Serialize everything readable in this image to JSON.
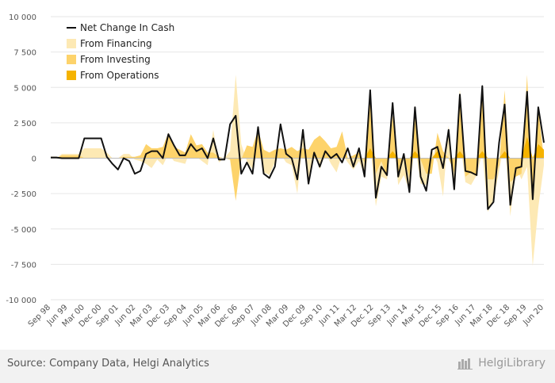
{
  "chart_data": {
    "type": "area",
    "title": "",
    "xlabel": "",
    "ylabel": "",
    "ylim": [
      -10000,
      10000
    ],
    "yticks": [
      10000,
      7500,
      5000,
      2500,
      0,
      -2500,
      -5000,
      -7500,
      -10000
    ],
    "ytick_labels": [
      "10 000",
      "7 500",
      "5 000",
      "2 500",
      "0",
      "-2 500",
      "-5 000",
      "-7 500",
      "-10 000"
    ],
    "xtick_labels": [
      "Sep 98",
      "Jun 99",
      "Mar 00",
      "Dec 00",
      "Sep 01",
      "Jun 02",
      "Mar 03",
      "Dec 03",
      "Sep 04",
      "Jun 05",
      "Mar 06",
      "Dec 06",
      "Sep 07",
      "Jun 08",
      "Mar 09",
      "Dec 09",
      "Sep 10",
      "Jun 11",
      "Mar 12",
      "Dec 12",
      "Sep 13",
      "Jun 14",
      "Mar 15",
      "Dec 15",
      "Sep 16",
      "Jun 17",
      "Mar 18",
      "Dec 18",
      "Sep 19",
      "Jun 20"
    ],
    "grid": true,
    "legend_position": "top-left",
    "series": [
      {
        "name": "Net Change In Cash",
        "kind": "line",
        "color": "#111111",
        "values": [
          50,
          50,
          0,
          0,
          0,
          0,
          1400,
          1400,
          1400,
          1400,
          100,
          -400,
          -800,
          0,
          -200,
          -1100,
          -900,
          300,
          500,
          500,
          0,
          1700,
          900,
          200,
          200,
          1000,
          500,
          700,
          0,
          1400,
          -100,
          -100,
          2400,
          3000,
          -1100,
          -300,
          -1100,
          2200,
          -1100,
          -1400,
          -600,
          2400,
          300,
          0,
          -1500,
          2000,
          -1800,
          400,
          -600,
          500,
          0,
          300,
          -300,
          700,
          -600,
          700,
          -1300,
          4800,
          -2800,
          -600,
          -1200,
          3900,
          -1300,
          300,
          -2400,
          3600,
          -1300,
          -2300,
          600,
          800,
          -700,
          2000,
          -2200,
          4500,
          -900,
          -1000,
          -1200,
          5100,
          -3600,
          -3100,
          1100,
          3800,
          -3300,
          -700,
          -600,
          4700,
          -2900,
          3600,
          1100
        ]
      },
      {
        "name": "From Financing",
        "kind": "area",
        "color": "#fde9b4",
        "values": [
          0,
          0,
          300,
          300,
          300,
          300,
          700,
          700,
          700,
          700,
          400,
          0,
          0,
          300,
          300,
          -100,
          -200,
          -400,
          -700,
          -100,
          -500,
          300,
          -200,
          -300,
          -400,
          700,
          100,
          -200,
          -500,
          2000,
          -300,
          0,
          500,
          5900,
          1000,
          -200,
          -800,
          1500,
          -1000,
          -1200,
          -300,
          300,
          -300,
          -500,
          -2500,
          1500,
          -1900,
          400,
          -800,
          400,
          -400,
          -1000,
          300,
          -300,
          -800,
          -200,
          -1200,
          1200,
          -3400,
          -1300,
          -1500,
          2500,
          -1900,
          -1200,
          -2300,
          1000,
          -1800,
          -1900,
          600,
          -300,
          -2700,
          2300,
          -1800,
          1300,
          -1700,
          -1900,
          -1200,
          400,
          -3800,
          -2900,
          -900,
          1300,
          -4100,
          -600,
          -1500,
          -600,
          -7600,
          -3500,
          -500
        ]
      },
      {
        "name": "From Investing",
        "kind": "area",
        "color": "#fdd36b",
        "values": [
          0,
          0,
          200,
          200,
          200,
          200,
          0,
          0,
          0,
          0,
          0,
          0,
          0,
          100,
          100,
          100,
          200,
          1000,
          700,
          700,
          800,
          1800,
          800,
          600,
          400,
          1700,
          900,
          1000,
          400,
          400,
          100,
          0,
          -100,
          -3000,
          -100,
          900,
          800,
          2000,
          600,
          400,
          600,
          700,
          600,
          800,
          500,
          700,
          600,
          1300,
          1600,
          1200,
          700,
          800,
          1900,
          0,
          200,
          400,
          -300,
          4800,
          -1100,
          -200,
          -1300,
          3000,
          -1300,
          300,
          -1400,
          3700,
          -100,
          -1100,
          -1100,
          1800,
          500,
          0,
          -1000,
          4800,
          -1300,
          -1000,
          -1200,
          4800,
          -1500,
          -1500,
          -500,
          4800,
          -1700,
          -1300,
          -1100,
          5900,
          -2600,
          3400,
          0
        ]
      },
      {
        "name": "From Operations",
        "kind": "area",
        "color": "#f5b300",
        "values": [
          100,
          100,
          0,
          0,
          0,
          0,
          0,
          0,
          0,
          0,
          0,
          0,
          0,
          0,
          0,
          0,
          0,
          0,
          0,
          0,
          0,
          0,
          0,
          0,
          0,
          0,
          0,
          0,
          0,
          0,
          0,
          0,
          0,
          0,
          0,
          0,
          0,
          0,
          0,
          0,
          0,
          0,
          0,
          0,
          0,
          0,
          0,
          0,
          0,
          0,
          0,
          0,
          0,
          0,
          0,
          0,
          0,
          700,
          0,
          0,
          0,
          500,
          0,
          0,
          0,
          500,
          0,
          0,
          0,
          500,
          0,
          0,
          0,
          500,
          0,
          0,
          0,
          500,
          0,
          0,
          0,
          500,
          0,
          0,
          0,
          1500,
          0,
          1000,
          600
        ]
      }
    ]
  },
  "footer": {
    "source": "Source: Company Data, Helgi Analytics",
    "brand": "HelgiLibrary"
  }
}
